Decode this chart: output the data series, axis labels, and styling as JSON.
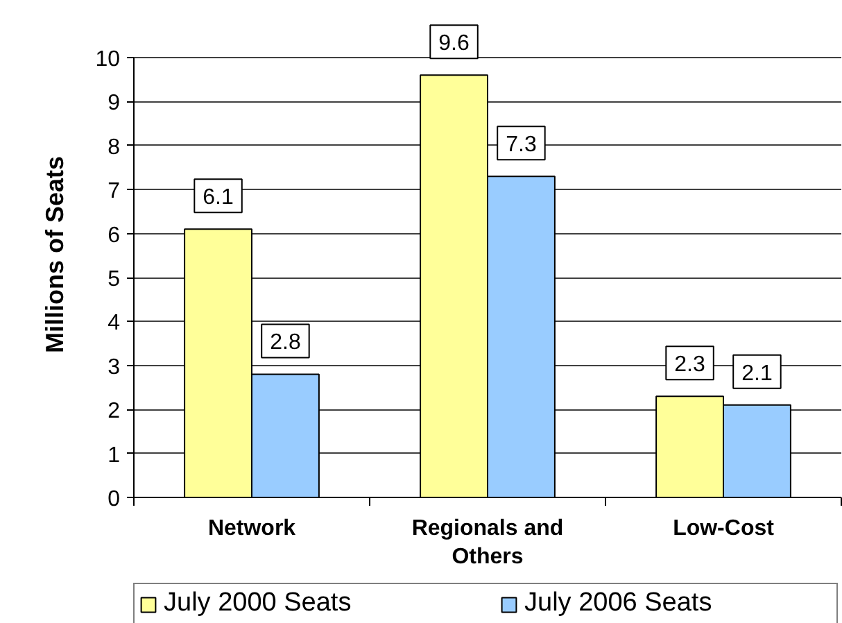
{
  "chart_data": {
    "type": "bar",
    "categories": [
      "Network",
      "Regionals and Others",
      "Low-Cost"
    ],
    "series": [
      {
        "name": "July 2000 Seats",
        "color": "#ffff99",
        "values": [
          6.1,
          9.6,
          2.3
        ]
      },
      {
        "name": "July 2006 Seats",
        "color": "#99ccff",
        "values": [
          2.8,
          7.3,
          2.1
        ]
      }
    ],
    "ylabel": "Millions of Seats",
    "ylim": [
      0,
      10
    ],
    "yticks": [
      0,
      1,
      2,
      3,
      4,
      5,
      6,
      7,
      8,
      9,
      10
    ],
    "grid": "y",
    "legend": "bottom",
    "data_labels": true
  }
}
